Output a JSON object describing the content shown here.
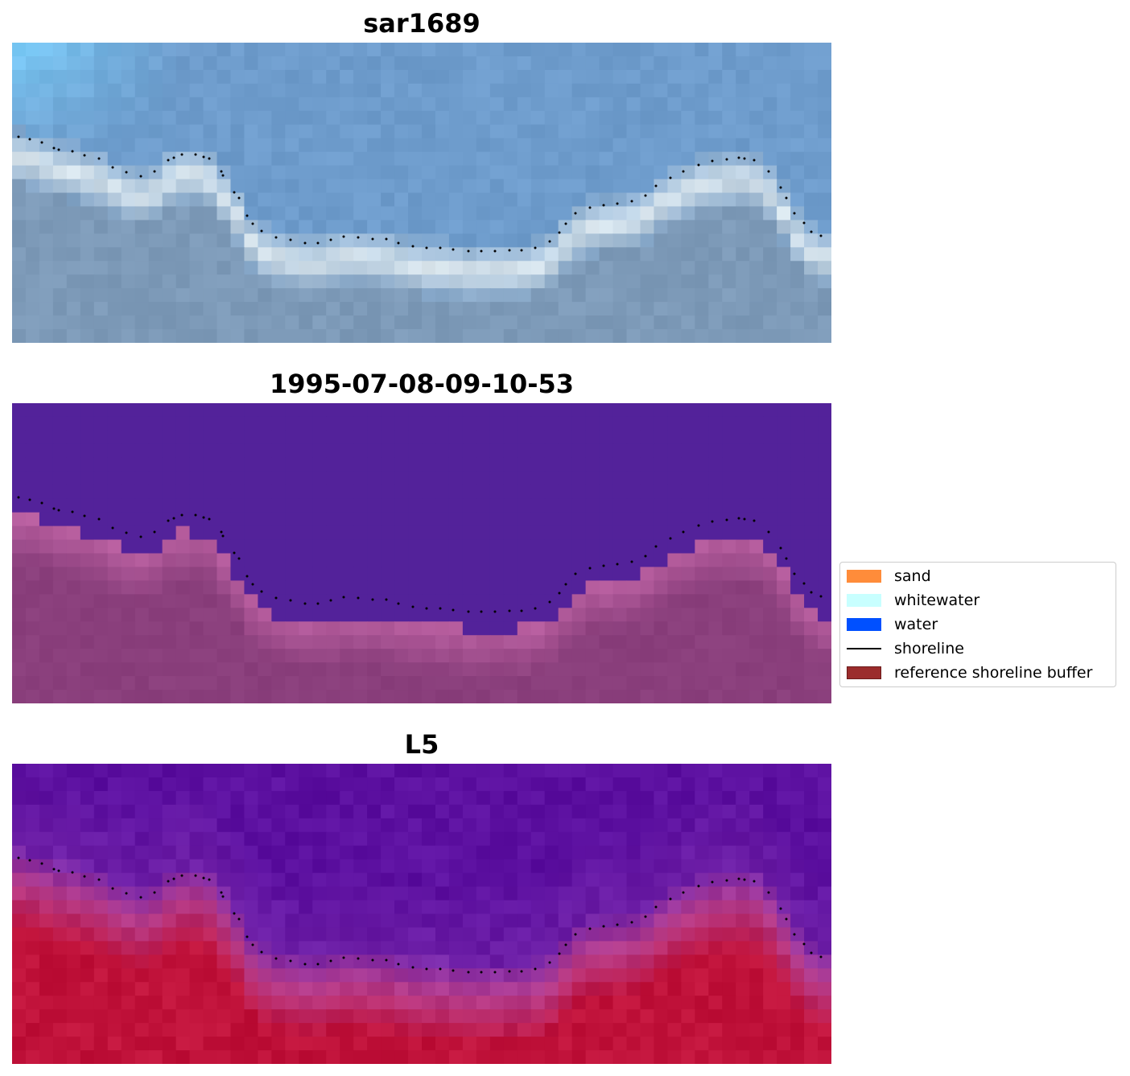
{
  "panels": [
    {
      "title": "sar1689"
    },
    {
      "title": "1995-07-08-09-10-53"
    },
    {
      "title": "L5"
    }
  ],
  "legend": {
    "items": [
      {
        "label": "sand",
        "color": "#ff8c3a",
        "kind": "patch"
      },
      {
        "label": "whitewater",
        "color": "#c8ffff",
        "kind": "patch"
      },
      {
        "label": "water",
        "color": "#0050ff",
        "kind": "patch"
      },
      {
        "label": "shoreline",
        "color": "#000000",
        "kind": "line"
      },
      {
        "label": "reference shoreline buffer",
        "color": "#9b2c2c",
        "kind": "patch"
      }
    ]
  },
  "colors": {
    "rgb_sky": "#6e9ccc",
    "rgb_surf": "#e8f2f4",
    "rgb_land": "#7d9ab8",
    "class_water": "#53229a",
    "class_sand": "#8a3f7c",
    "index_water": "#5c10a0",
    "index_land": "#c0123a"
  }
}
